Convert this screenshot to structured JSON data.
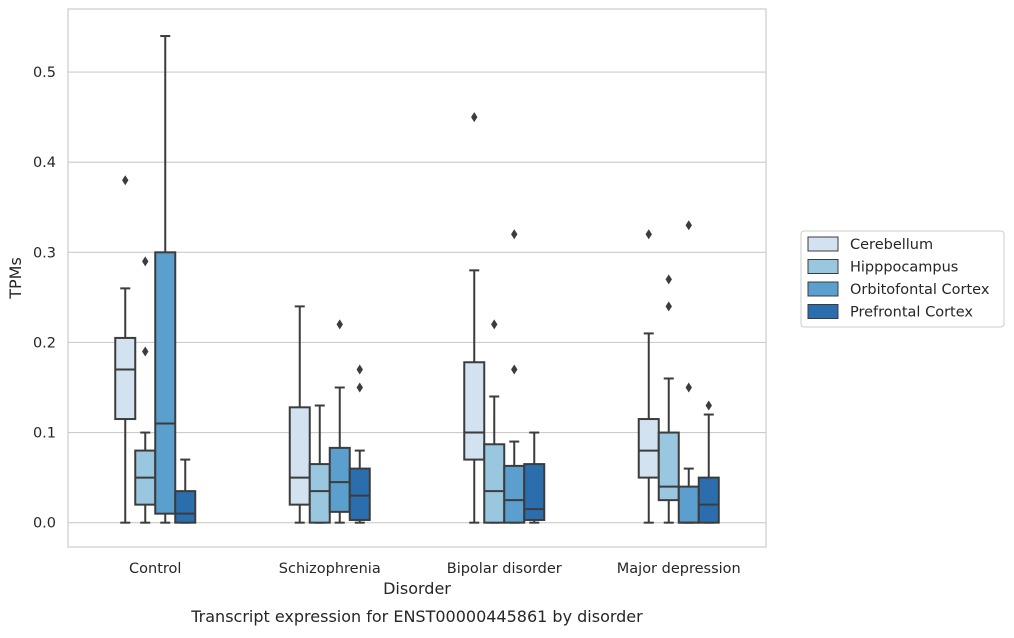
{
  "chart_data": {
    "type": "box",
    "xlabel": "Disorder",
    "ylabel": "TPMs",
    "caption": "Transcript expression for ENST00000445861 by disorder",
    "ylim": [
      -0.027,
      0.57
    ],
    "yticks": [
      0.0,
      0.1,
      0.2,
      0.3,
      0.4,
      0.5
    ],
    "ytick_labels": [
      "0.0",
      "0.1",
      "0.2",
      "0.3",
      "0.4",
      "0.5"
    ],
    "grid": "horizontal",
    "legend_position": "right",
    "categories": [
      "Control",
      "Schizophrenia",
      "Bipolar disorder",
      "Major depression"
    ],
    "series": [
      {
        "name": "Cerebellum",
        "color": "#d2e2f1",
        "boxes": [
          {
            "whisker_low": 0.0,
            "q1": 0.115,
            "median": 0.17,
            "q3": 0.205,
            "whisker_high": 0.26,
            "outliers": [
              0.38
            ]
          },
          {
            "whisker_low": 0.0,
            "q1": 0.02,
            "median": 0.05,
            "q3": 0.128,
            "whisker_high": 0.24,
            "outliers": []
          },
          {
            "whisker_low": 0.0,
            "q1": 0.07,
            "median": 0.1,
            "q3": 0.178,
            "whisker_high": 0.28,
            "outliers": [
              0.45
            ]
          },
          {
            "whisker_low": 0.0,
            "q1": 0.05,
            "median": 0.08,
            "q3": 0.115,
            "whisker_high": 0.21,
            "outliers": [
              0.32
            ]
          }
        ]
      },
      {
        "name": "Hipppocampus",
        "color": "#9ac7e0",
        "boxes": [
          {
            "whisker_low": 0.0,
            "q1": 0.02,
            "median": 0.05,
            "q3": 0.08,
            "whisker_high": 0.1,
            "outliers": [
              0.19,
              0.29
            ]
          },
          {
            "whisker_low": 0.0,
            "q1": 0.0,
            "median": 0.035,
            "q3": 0.065,
            "whisker_high": 0.13,
            "outliers": []
          },
          {
            "whisker_low": 0.0,
            "q1": 0.0,
            "median": 0.035,
            "q3": 0.087,
            "whisker_high": 0.14,
            "outliers": [
              0.22
            ]
          },
          {
            "whisker_low": 0.0,
            "q1": 0.025,
            "median": 0.04,
            "q3": 0.1,
            "whisker_high": 0.16,
            "outliers": [
              0.24,
              0.27
            ]
          }
        ]
      },
      {
        "name": "Orbitofontal Cortex",
        "color": "#5a9fcd",
        "boxes": [
          {
            "whisker_low": 0.0,
            "q1": 0.01,
            "median": 0.11,
            "q3": 0.3,
            "whisker_high": 0.54,
            "outliers": []
          },
          {
            "whisker_low": 0.0,
            "q1": 0.012,
            "median": 0.045,
            "q3": 0.083,
            "whisker_high": 0.15,
            "outliers": [
              0.22
            ]
          },
          {
            "whisker_low": 0.0,
            "q1": 0.0,
            "median": 0.025,
            "q3": 0.063,
            "whisker_high": 0.09,
            "outliers": [
              0.17,
              0.32
            ]
          },
          {
            "whisker_low": 0.0,
            "q1": 0.0,
            "median": 0.0,
            "q3": 0.04,
            "whisker_high": 0.06,
            "outliers": [
              0.15,
              0.33
            ]
          }
        ]
      },
      {
        "name": "Prefrontal Cortex",
        "color": "#2b6eae",
        "boxes": [
          {
            "whisker_low": 0.0,
            "q1": 0.0,
            "median": 0.01,
            "q3": 0.035,
            "whisker_high": 0.07,
            "outliers": []
          },
          {
            "whisker_low": 0.0,
            "q1": 0.003,
            "median": 0.03,
            "q3": 0.06,
            "whisker_high": 0.08,
            "outliers": [
              0.15,
              0.17
            ]
          },
          {
            "whisker_low": 0.0,
            "q1": 0.003,
            "median": 0.015,
            "q3": 0.065,
            "whisker_high": 0.1,
            "outliers": []
          },
          {
            "whisker_low": 0.0,
            "q1": 0.0,
            "median": 0.02,
            "q3": 0.05,
            "whisker_high": 0.12,
            "outliers": [
              0.13
            ]
          }
        ]
      }
    ]
  }
}
